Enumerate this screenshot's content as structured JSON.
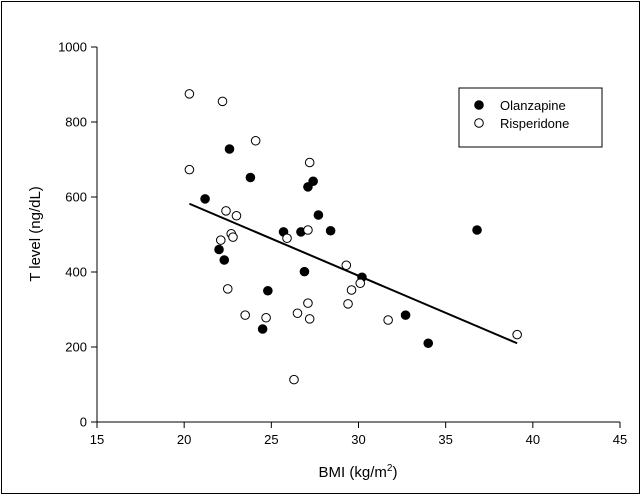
{
  "chart_data": {
    "type": "scatter",
    "xlabel": "BMI (kg/m",
    "xlabel_sup": "2",
    "xlabel_end": ")",
    "ylabel": "T level (ng/dL)",
    "xlim": [
      15,
      45
    ],
    "ylim": [
      0,
      1000
    ],
    "xticks": [
      15,
      20,
      25,
      30,
      35,
      40,
      45
    ],
    "yticks": [
      0,
      200,
      400,
      600,
      800,
      1000
    ],
    "grid": false,
    "legend_position": "top-right",
    "series": [
      {
        "name": "Olanzapine",
        "marker": "filled-circle",
        "color": "#000000",
        "points": [
          [
            21.2,
            595
          ],
          [
            22.0,
            460
          ],
          [
            22.3,
            432
          ],
          [
            22.6,
            728
          ],
          [
            23.8,
            652
          ],
          [
            24.5,
            248
          ],
          [
            24.8,
            350
          ],
          [
            25.7,
            507
          ],
          [
            26.7,
            507
          ],
          [
            26.9,
            401
          ],
          [
            27.1,
            627
          ],
          [
            27.4,
            642
          ],
          [
            27.7,
            552
          ],
          [
            28.4,
            510
          ],
          [
            30.2,
            386
          ],
          [
            32.7,
            285
          ],
          [
            34.0,
            210
          ],
          [
            36.8,
            512
          ]
        ]
      },
      {
        "name": "Risperidone",
        "marker": "open-circle",
        "color": "#000000",
        "points": [
          [
            20.3,
            875
          ],
          [
            20.3,
            673
          ],
          [
            22.1,
            485
          ],
          [
            22.2,
            855
          ],
          [
            22.4,
            563
          ],
          [
            22.5,
            355
          ],
          [
            22.7,
            502
          ],
          [
            22.8,
            493
          ],
          [
            23.0,
            550
          ],
          [
            23.5,
            285
          ],
          [
            24.1,
            750
          ],
          [
            24.7,
            278
          ],
          [
            25.9,
            490
          ],
          [
            26.3,
            113
          ],
          [
            26.5,
            290
          ],
          [
            27.1,
            512
          ],
          [
            27.1,
            317
          ],
          [
            27.2,
            275
          ],
          [
            27.2,
            692
          ],
          [
            29.3,
            418
          ],
          [
            29.4,
            315
          ],
          [
            29.6,
            352
          ],
          [
            30.1,
            370
          ],
          [
            31.7,
            272
          ],
          [
            39.1,
            233
          ]
        ]
      }
    ],
    "regression_line": {
      "x": [
        20.3,
        39.1
      ],
      "y": [
        582,
        210
      ]
    }
  }
}
